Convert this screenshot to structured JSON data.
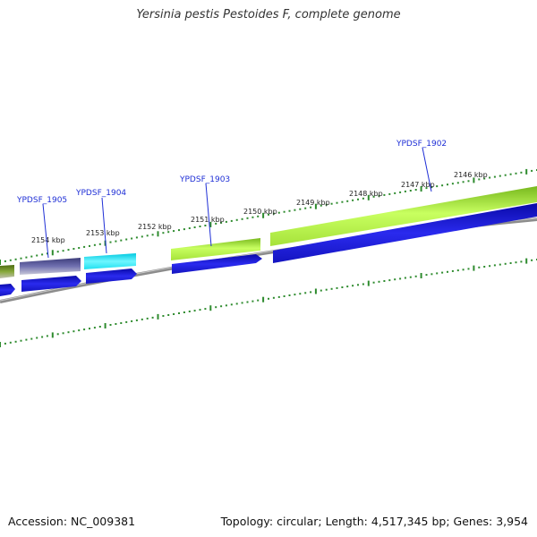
{
  "title": "Yersinia pestis Pestoides F, complete genome",
  "footer": {
    "accession": "Accession: NC_009381",
    "summary": "Topology: circular; Length: 4,517,345 bp; Genes: 3,954"
  },
  "kbp_labels": [
    "2154 kbp",
    "2153 kbp",
    "2152 kbp",
    "2151 kbp",
    "2150 kbp",
    "2149 kbp",
    "2148 kbp",
    "2147 kbp",
    "2146 kbp"
  ],
  "gene_labels": [
    "YPDSF_1905",
    "YPDSF_1904",
    "YPDSF_1903",
    "YPDSF_1902"
  ],
  "colors": {
    "backbone": "#8c8c8c",
    "tick": "#2e8b2e",
    "cds": "#1414d2",
    "gene_label": "#1f2fd6",
    "feature_olive": "#6b8e23",
    "feature_purple": "#4b4b8c",
    "feature_cyan": "#20e0f0",
    "feature_lime": "#9acd32"
  }
}
